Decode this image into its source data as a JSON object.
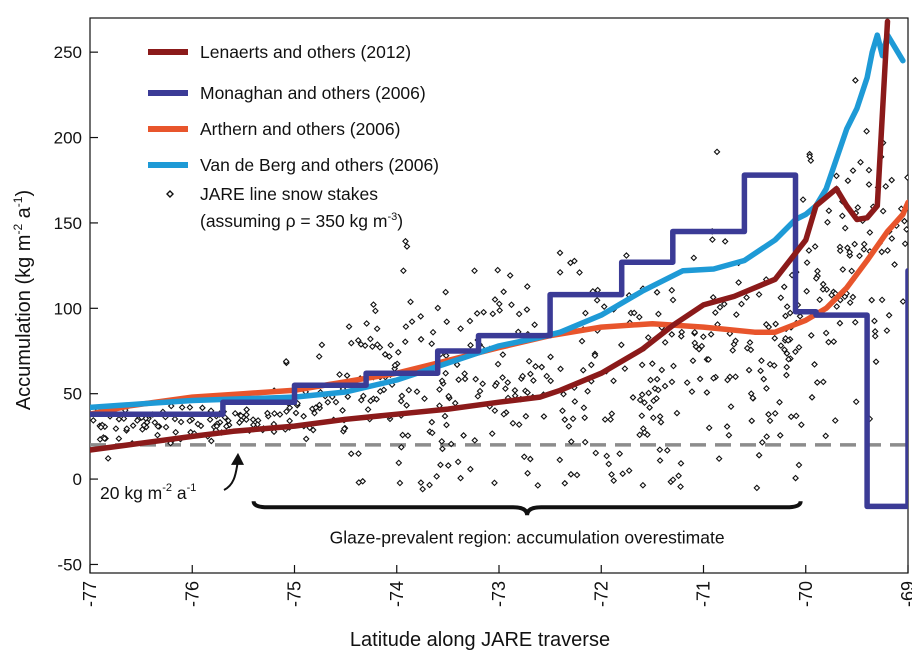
{
  "chart_data": {
    "type": "line",
    "xlabel": "Latitude along JARE traverse",
    "ylabel_main": "Accumulation (kg m",
    "ylabel_sup1": "-2",
    "ylabel_mid": " a",
    "ylabel_sup2": "-1",
    "ylabel_end": ")",
    "xlim": [
      -77,
      -69
    ],
    "ylim": [
      -55,
      270
    ],
    "x_ticks": [
      -77,
      -76,
      -75,
      -74,
      -73,
      -72,
      -71,
      -70,
      -69
    ],
    "x_tick_labels": [
      "-77",
      "-76",
      "-75",
      "-74",
      "-73",
      "-72",
      "-71",
      "-70",
      "-69"
    ],
    "y_ticks": [
      -50,
      0,
      50,
      100,
      150,
      200,
      250
    ],
    "y_tick_labels": [
      "-50",
      "0",
      "50",
      "100",
      "150",
      "200",
      "250"
    ],
    "grid": false,
    "legend_position": "top-left",
    "reference_line": {
      "y": 20,
      "label": "20 kg m",
      "label_sup1": "-2",
      "label_mid": " a",
      "label_sup2": "-1",
      "color": "#8c8c8c"
    },
    "brace": {
      "x_start": -75.4,
      "x_end": -70.05,
      "y": -13,
      "label": "Glaze-prevalent region:  accumulation overestimate"
    },
    "series": [
      {
        "name": "Lenaerts and others (2012)",
        "color": "#8b1a1a",
        "style": "smooth",
        "x": [
          -77,
          -76.5,
          -76,
          -75.6,
          -75,
          -74.5,
          -74,
          -73.5,
          -73,
          -72.6,
          -72.4,
          -72,
          -71.6,
          -71.3,
          -71,
          -70.7,
          -70.3,
          -70,
          -69.9,
          -69.7,
          -69.6,
          -69.5,
          -69.4,
          -69.3,
          -69.2
        ],
        "y": [
          17,
          21,
          25,
          28,
          31,
          35,
          38,
          41,
          45,
          48,
          52,
          62,
          76,
          90,
          102,
          107,
          117,
          140,
          160,
          170,
          160,
          152,
          153,
          160,
          268
        ]
      },
      {
        "name": "Monaghan and others (2006)",
        "color": "#3b3b96",
        "style": "step",
        "x": [
          -77,
          -75.7,
          -75.7,
          -75,
          -75,
          -74.3,
          -74.3,
          -73.6,
          -73.6,
          -73.2,
          -73.2,
          -72.5,
          -72.5,
          -71.8,
          -71.8,
          -71.3,
          -71.3,
          -70.6,
          -70.6,
          -70.1,
          -70.1,
          -69.9,
          -69.9,
          -69.4,
          -69.4,
          -69.0,
          -69.0
        ],
        "y": [
          38,
          38,
          45,
          45,
          55,
          55,
          62,
          62,
          75,
          75,
          84,
          84,
          108,
          108,
          127,
          127,
          145,
          145,
          178,
          178,
          98,
          98,
          96,
          96,
          -16,
          -16,
          122
        ]
      },
      {
        "name": "Arthern and others (2006)",
        "color": "#e8552c",
        "style": "smooth",
        "x": [
          -77,
          -76.6,
          -76,
          -75.5,
          -75,
          -74.6,
          -74,
          -73.6,
          -73,
          -72.5,
          -72,
          -71.5,
          -71,
          -70.5,
          -70.3,
          -70,
          -69.8,
          -69.6,
          -69.4,
          -69.2,
          -69.05,
          -69.0
        ],
        "y": [
          38,
          43,
          48,
          50,
          52,
          56,
          62,
          68,
          77,
          84,
          89,
          91,
          89,
          86,
          86,
          93,
          100,
          112,
          128,
          145,
          155,
          162
        ]
      },
      {
        "name": "Van de Berg and others (2006)",
        "color": "#1e9ad6",
        "style": "smooth",
        "x": [
          -77,
          -76.5,
          -76,
          -75.5,
          -75,
          -74.5,
          -74,
          -73.5,
          -73,
          -72.6,
          -72.4,
          -72,
          -71.6,
          -71.2,
          -70.9,
          -70.6,
          -70.3,
          -70.1,
          -70.0,
          -69.9,
          -69.8,
          -69.6,
          -69.5,
          -69.4,
          -69.35,
          -69.3,
          -69.25,
          -69.2,
          -69.1,
          -69.05
        ],
        "y": [
          42,
          44,
          46,
          47,
          48,
          51,
          58,
          68,
          78,
          83,
          86,
          96,
          110,
          122,
          123,
          128,
          140,
          152,
          155,
          160,
          170,
          205,
          217,
          235,
          250,
          260,
          248,
          260,
          250,
          245
        ]
      },
      {
        "name": "JARE line snow stakes",
        "name_line2": "(assuming ρ = 350 kg m",
        "name_line2_sup": "-3",
        "name_line2_end": ")",
        "color": "#111111",
        "style": "scatter"
      }
    ]
  }
}
